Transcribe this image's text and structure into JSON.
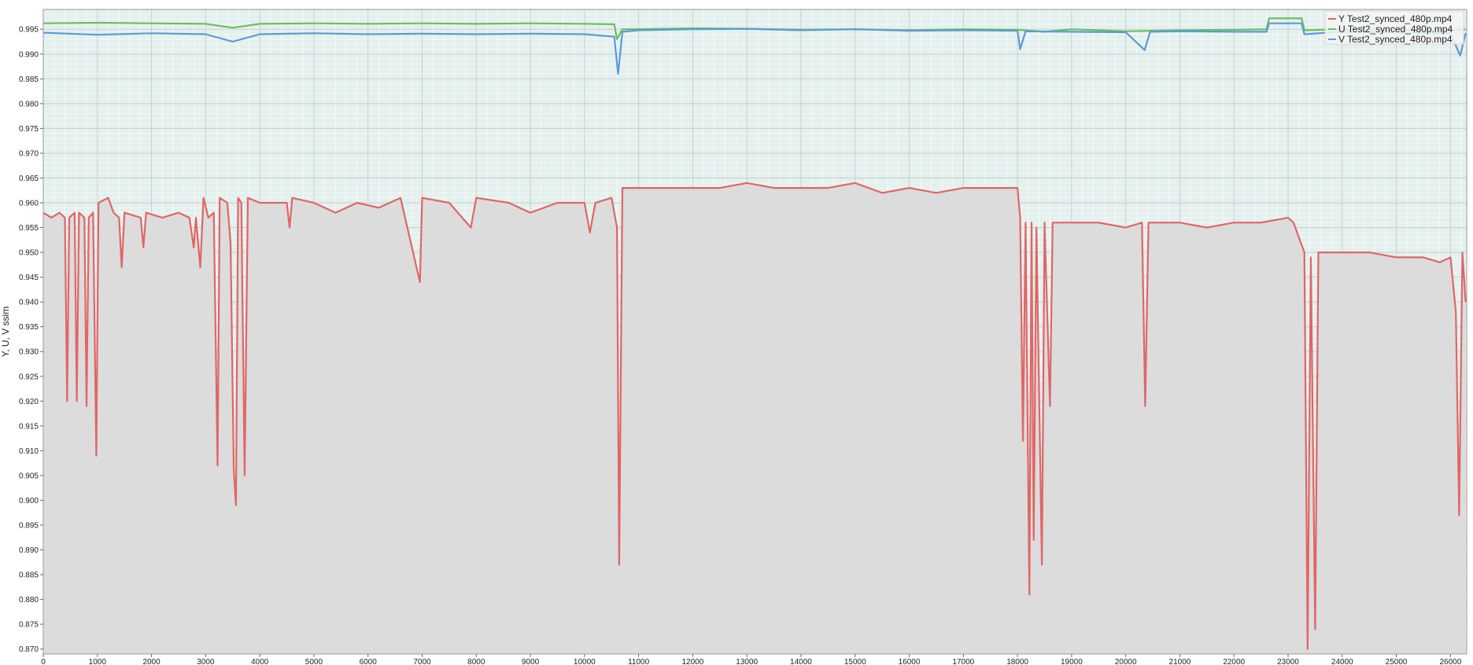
{
  "chart_data": {
    "type": "area",
    "title": "",
    "xlabel": "",
    "ylabel": "Y, U, V ssim",
    "xlim": [
      0,
      26300
    ],
    "ylim": [
      0.869,
      0.999
    ],
    "xticks": [
      0,
      1000,
      2000,
      3000,
      4000,
      5000,
      6000,
      7000,
      8000,
      9000,
      10000,
      11000,
      12000,
      13000,
      14000,
      15000,
      16000,
      17000,
      18000,
      19000,
      20000,
      21000,
      22000,
      23000,
      24000,
      25000,
      26000
    ],
    "yticks": [
      "0.870",
      "0.875",
      "0.880",
      "0.885",
      "0.890",
      "0.895",
      "0.900",
      "0.905",
      "0.910",
      "0.915",
      "0.920",
      "0.925",
      "0.930",
      "0.935",
      "0.940",
      "0.945",
      "0.950",
      "0.955",
      "0.960",
      "0.965",
      "0.970",
      "0.975",
      "0.980",
      "0.985",
      "0.990",
      "0.995"
    ],
    "grid": true,
    "legend_position": "top-right",
    "series": [
      {
        "name": "Y Test2_synced_480p.mp4",
        "color": "#e06666",
        "fill": "#dcdcdc",
        "points": [
          [
            0,
            0.958
          ],
          [
            150,
            0.957
          ],
          [
            300,
            0.958
          ],
          [
            400,
            0.957
          ],
          [
            440,
            0.92
          ],
          [
            480,
            0.957
          ],
          [
            580,
            0.958
          ],
          [
            620,
            0.92
          ],
          [
            660,
            0.958
          ],
          [
            760,
            0.957
          ],
          [
            800,
            0.919
          ],
          [
            840,
            0.957
          ],
          [
            920,
            0.958
          ],
          [
            980,
            0.909
          ],
          [
            1020,
            0.96
          ],
          [
            1200,
            0.961
          ],
          [
            1300,
            0.958
          ],
          [
            1400,
            0.957
          ],
          [
            1450,
            0.947
          ],
          [
            1500,
            0.958
          ],
          [
            1800,
            0.957
          ],
          [
            1850,
            0.951
          ],
          [
            1900,
            0.958
          ],
          [
            2200,
            0.957
          ],
          [
            2500,
            0.958
          ],
          [
            2700,
            0.957
          ],
          [
            2780,
            0.951
          ],
          [
            2820,
            0.957
          ],
          [
            2900,
            0.947
          ],
          [
            2960,
            0.961
          ],
          [
            3050,
            0.957
          ],
          [
            3150,
            0.958
          ],
          [
            3220,
            0.907
          ],
          [
            3260,
            0.961
          ],
          [
            3400,
            0.96
          ],
          [
            3460,
            0.952
          ],
          [
            3520,
            0.906
          ],
          [
            3560,
            0.899
          ],
          [
            3600,
            0.961
          ],
          [
            3660,
            0.96
          ],
          [
            3720,
            0.905
          ],
          [
            3780,
            0.961
          ],
          [
            4000,
            0.96
          ],
          [
            4500,
            0.96
          ],
          [
            4550,
            0.955
          ],
          [
            4600,
            0.961
          ],
          [
            5000,
            0.96
          ],
          [
            5400,
            0.958
          ],
          [
            5800,
            0.96
          ],
          [
            6200,
            0.959
          ],
          [
            6600,
            0.961
          ],
          [
            6960,
            0.944
          ],
          [
            7000,
            0.961
          ],
          [
            7500,
            0.96
          ],
          [
            7900,
            0.955
          ],
          [
            8000,
            0.961
          ],
          [
            8600,
            0.96
          ],
          [
            9000,
            0.958
          ],
          [
            9500,
            0.96
          ],
          [
            10000,
            0.96
          ],
          [
            10100,
            0.954
          ],
          [
            10200,
            0.96
          ],
          [
            10500,
            0.961
          ],
          [
            10600,
            0.955
          ],
          [
            10640,
            0.887
          ],
          [
            10700,
            0.963
          ],
          [
            11000,
            0.963
          ],
          [
            11500,
            0.963
          ],
          [
            12000,
            0.963
          ],
          [
            12500,
            0.963
          ],
          [
            13000,
            0.964
          ],
          [
            13500,
            0.963
          ],
          [
            14000,
            0.963
          ],
          [
            14500,
            0.963
          ],
          [
            15000,
            0.964
          ],
          [
            15500,
            0.962
          ],
          [
            16000,
            0.963
          ],
          [
            16500,
            0.962
          ],
          [
            17000,
            0.963
          ],
          [
            17500,
            0.963
          ],
          [
            18000,
            0.963
          ],
          [
            18050,
            0.957
          ],
          [
            18100,
            0.912
          ],
          [
            18150,
            0.956
          ],
          [
            18220,
            0.881
          ],
          [
            18260,
            0.956
          ],
          [
            18300,
            0.892
          ],
          [
            18350,
            0.955
          ],
          [
            18450,
            0.887
          ],
          [
            18500,
            0.956
          ],
          [
            18600,
            0.919
          ],
          [
            18650,
            0.956
          ],
          [
            19000,
            0.956
          ],
          [
            19500,
            0.956
          ],
          [
            20000,
            0.955
          ],
          [
            20300,
            0.956
          ],
          [
            20360,
            0.919
          ],
          [
            20420,
            0.956
          ],
          [
            21000,
            0.956
          ],
          [
            21500,
            0.955
          ],
          [
            22000,
            0.956
          ],
          [
            22500,
            0.956
          ],
          [
            23000,
            0.957
          ],
          [
            23100,
            0.956
          ],
          [
            23200,
            0.953
          ],
          [
            23300,
            0.95
          ],
          [
            23360,
            0.87
          ],
          [
            23420,
            0.949
          ],
          [
            23500,
            0.874
          ],
          [
            23560,
            0.95
          ],
          [
            24000,
            0.95
          ],
          [
            24500,
            0.95
          ],
          [
            25000,
            0.949
          ],
          [
            25500,
            0.949
          ],
          [
            25800,
            0.948
          ],
          [
            26000,
            0.949
          ],
          [
            26100,
            0.938
          ],
          [
            26160,
            0.897
          ],
          [
            26220,
            0.95
          ],
          [
            26280,
            0.94
          ]
        ]
      },
      {
        "name": "U Test2_synced_480p.mp4",
        "color": "#6bbf5b",
        "points": [
          [
            0,
            0.9962
          ],
          [
            1000,
            0.9963
          ],
          [
            2000,
            0.9962
          ],
          [
            3000,
            0.9961
          ],
          [
            3500,
            0.9953
          ],
          [
            4000,
            0.9961
          ],
          [
            5000,
            0.9962
          ],
          [
            6000,
            0.9961
          ],
          [
            7000,
            0.9962
          ],
          [
            8000,
            0.9961
          ],
          [
            9000,
            0.9962
          ],
          [
            10000,
            0.9961
          ],
          [
            10550,
            0.996
          ],
          [
            10600,
            0.993
          ],
          [
            10700,
            0.995
          ],
          [
            11000,
            0.995
          ],
          [
            12000,
            0.9952
          ],
          [
            13000,
            0.9951
          ],
          [
            14000,
            0.9948
          ],
          [
            15000,
            0.995
          ],
          [
            16000,
            0.9948
          ],
          [
            17000,
            0.995
          ],
          [
            18000,
            0.9949
          ],
          [
            18500,
            0.9945
          ],
          [
            19000,
            0.995
          ],
          [
            20000,
            0.9946
          ],
          [
            21000,
            0.9948
          ],
          [
            22000,
            0.9949
          ],
          [
            22600,
            0.995
          ],
          [
            22650,
            0.9972
          ],
          [
            23250,
            0.9972
          ],
          [
            23300,
            0.9948
          ],
          [
            24000,
            0.995
          ],
          [
            25000,
            0.9949
          ],
          [
            26000,
            0.9948
          ],
          [
            26280,
            0.995
          ]
        ]
      },
      {
        "name": "V Test2_synced_480p.mp4",
        "color": "#5b9bd5",
        "points": [
          [
            0,
            0.9943
          ],
          [
            1000,
            0.9939
          ],
          [
            2000,
            0.9942
          ],
          [
            3000,
            0.994
          ],
          [
            3500,
            0.9925
          ],
          [
            4000,
            0.994
          ],
          [
            5000,
            0.9942
          ],
          [
            6000,
            0.994
          ],
          [
            7000,
            0.9941
          ],
          [
            8000,
            0.994
          ],
          [
            9000,
            0.9941
          ],
          [
            10000,
            0.994
          ],
          [
            10550,
            0.9935
          ],
          [
            10620,
            0.986
          ],
          [
            10700,
            0.9945
          ],
          [
            11000,
            0.9948
          ],
          [
            12000,
            0.995
          ],
          [
            13000,
            0.9951
          ],
          [
            14000,
            0.9949
          ],
          [
            15000,
            0.995
          ],
          [
            16000,
            0.9947
          ],
          [
            17000,
            0.9948
          ],
          [
            18000,
            0.9947
          ],
          [
            18050,
            0.991
          ],
          [
            18150,
            0.9946
          ],
          [
            19000,
            0.9945
          ],
          [
            20000,
            0.9944
          ],
          [
            20350,
            0.9908
          ],
          [
            20450,
            0.9945
          ],
          [
            21000,
            0.9946
          ],
          [
            22000,
            0.9945
          ],
          [
            22600,
            0.9945
          ],
          [
            22650,
            0.9962
          ],
          [
            23250,
            0.9962
          ],
          [
            23300,
            0.994
          ],
          [
            24000,
            0.9945
          ],
          [
            25000,
            0.9943
          ],
          [
            26000,
            0.9942
          ],
          [
            26180,
            0.9897
          ],
          [
            26280,
            0.9942
          ]
        ]
      }
    ],
    "legend": [
      {
        "label": "Y Test2_synced_480p.mp4",
        "color": "#e06666"
      },
      {
        "label": "U Test2_synced_480p.mp4",
        "color": "#6bbf5b"
      },
      {
        "label": "V Test2_synced_480p.mp4",
        "color": "#5b9bd5"
      }
    ]
  }
}
